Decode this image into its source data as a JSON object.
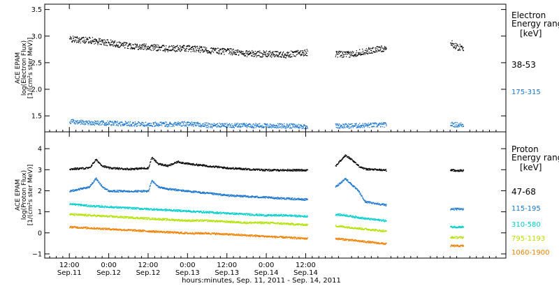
{
  "chart_data": [
    {
      "type": "scatter",
      "panel": "electron",
      "ylabel": [
        "ACE EPAM",
        "log(Electron Flux)",
        "[1/(cm²s ster MeV)]"
      ],
      "ylim": [
        1.2,
        3.6
      ],
      "yticks": [
        1.5,
        2.0,
        2.5,
        3.0,
        3.5
      ],
      "ytick_labels": [
        "1.5",
        "2.0",
        "2.5",
        "3.0",
        "3.5"
      ],
      "legend_title": [
        "Electron",
        "Energy ranges",
        "[keV]"
      ],
      "series": [
        {
          "name": "38-53",
          "color": "#000000",
          "points": [
            [
              0,
              2.95
            ],
            [
              6,
              2.93
            ],
            [
              12,
              2.88
            ],
            [
              18,
              2.83
            ],
            [
              24,
              2.8
            ],
            [
              30,
              2.77
            ],
            [
              36,
              2.78
            ],
            [
              42,
              2.74
            ],
            [
              48,
              2.72
            ],
            [
              54,
              2.68
            ],
            [
              60,
              2.67
            ],
            [
              66,
              2.66
            ],
            [
              72,
              2.7
            ],
            [
              81,
              2.67
            ],
            [
              85,
              2.66
            ],
            [
              90,
              2.72
            ],
            [
              96,
              2.78
            ],
            [
              102,
              2.86
            ],
            [
              108,
              2.9
            ],
            [
              116,
              2.88
            ],
            [
              118,
              2.8
            ],
            [
              120,
              2.79
            ]
          ]
        },
        {
          "name": "175-315",
          "color": "#1874cd",
          "points": [
            [
              0,
              1.4
            ],
            [
              6,
              1.38
            ],
            [
              12,
              1.37
            ],
            [
              18,
              1.36
            ],
            [
              24,
              1.35
            ],
            [
              30,
              1.35
            ],
            [
              36,
              1.36
            ],
            [
              42,
              1.33
            ],
            [
              48,
              1.33
            ],
            [
              54,
              1.33
            ],
            [
              60,
              1.32
            ],
            [
              66,
              1.32
            ],
            [
              72,
              1.31
            ],
            [
              81,
              1.32
            ],
            [
              85,
              1.32
            ],
            [
              90,
              1.33
            ],
            [
              96,
              1.34
            ],
            [
              102,
              1.36
            ],
            [
              108,
              1.37
            ],
            [
              116,
              1.35
            ],
            [
              118,
              1.34
            ],
            [
              120,
              1.34
            ]
          ]
        }
      ]
    },
    {
      "type": "scatter",
      "panel": "proton",
      "ylabel": [
        "ACE EPAM",
        "log(Proton Flux)",
        "[1/(cm²s ster MeV)]"
      ],
      "ylim": [
        -1.2,
        4.8
      ],
      "yticks": [
        -1,
        0,
        1,
        2,
        3,
        4
      ],
      "ytick_labels": [
        "−1",
        "0",
        "1",
        "2",
        "3",
        "4"
      ],
      "legend_title": [
        "Proton",
        "Energy ranges",
        "[keV]"
      ],
      "series": [
        {
          "name": "47-68",
          "color": "#000000",
          "points": [
            [
              0,
              3.05
            ],
            [
              6,
              3.1
            ],
            [
              8,
              3.5
            ],
            [
              10,
              3.2
            ],
            [
              12,
              3.1
            ],
            [
              18,
              3.05
            ],
            [
              24,
              3.1
            ],
            [
              25,
              3.6
            ],
            [
              27,
              3.3
            ],
            [
              30,
              3.2
            ],
            [
              33,
              3.4
            ],
            [
              36,
              3.3
            ],
            [
              42,
              3.2
            ],
            [
              48,
              3.1
            ],
            [
              54,
              3.05
            ],
            [
              60,
              3.0
            ],
            [
              66,
              3.0
            ],
            [
              72,
              3.0
            ],
            [
              81,
              3.2
            ],
            [
              84,
              3.7
            ],
            [
              86,
              3.5
            ],
            [
              88,
              3.2
            ],
            [
              90,
              3.05
            ],
            [
              96,
              3.0
            ],
            [
              102,
              3.0
            ],
            [
              106,
              3.0
            ],
            [
              107,
              4.2
            ],
            [
              108,
              3.2
            ],
            [
              110,
              3.0
            ],
            [
              116,
              3.0
            ],
            [
              118,
              2.98
            ],
            [
              120,
              2.98
            ]
          ]
        },
        {
          "name": "115-195",
          "color": "#1874cd",
          "points": [
            [
              0,
              2.0
            ],
            [
              6,
              2.2
            ],
            [
              8,
              2.6
            ],
            [
              10,
              2.2
            ],
            [
              12,
              2.0
            ],
            [
              18,
              2.0
            ],
            [
              24,
              2.0
            ],
            [
              25,
              2.5
            ],
            [
              27,
              2.2
            ],
            [
              30,
              2.1
            ],
            [
              36,
              2.0
            ],
            [
              42,
              1.9
            ],
            [
              48,
              1.8
            ],
            [
              54,
              1.75
            ],
            [
              60,
              1.7
            ],
            [
              66,
              1.65
            ],
            [
              72,
              1.6
            ],
            [
              81,
              2.2
            ],
            [
              84,
              2.6
            ],
            [
              86,
              2.3
            ],
            [
              88,
              2.0
            ],
            [
              90,
              1.5
            ],
            [
              96,
              1.35
            ],
            [
              102,
              1.3
            ],
            [
              106,
              1.25
            ],
            [
              107,
              2.4
            ],
            [
              108,
              1.4
            ],
            [
              110,
              1.2
            ],
            [
              116,
              1.15
            ],
            [
              118,
              1.15
            ],
            [
              120,
              1.15
            ]
          ]
        },
        {
          "name": "310-580",
          "color": "#00cdcd",
          "points": [
            [
              0,
              1.4
            ],
            [
              6,
              1.3
            ],
            [
              12,
              1.25
            ],
            [
              18,
              1.2
            ],
            [
              24,
              1.15
            ],
            [
              30,
              1.1
            ],
            [
              36,
              1.05
            ],
            [
              42,
              1.0
            ],
            [
              48,
              0.95
            ],
            [
              54,
              0.9
            ],
            [
              60,
              0.85
            ],
            [
              66,
              0.85
            ],
            [
              72,
              0.8
            ],
            [
              81,
              0.9
            ],
            [
              84,
              0.85
            ],
            [
              90,
              0.7
            ],
            [
              96,
              0.6
            ],
            [
              102,
              0.5
            ],
            [
              106,
              0.5
            ],
            [
              107,
              0.7
            ],
            [
              108,
              0.4
            ],
            [
              110,
              0.3
            ],
            [
              116,
              0.3
            ],
            [
              118,
              0.3
            ],
            [
              120,
              0.3
            ]
          ]
        },
        {
          "name": "795-1193",
          "color": "#b2e000",
          "points": [
            [
              0,
              0.9
            ],
            [
              6,
              0.85
            ],
            [
              12,
              0.8
            ],
            [
              18,
              0.75
            ],
            [
              24,
              0.7
            ],
            [
              30,
              0.65
            ],
            [
              36,
              0.6
            ],
            [
              42,
              0.6
            ],
            [
              48,
              0.55
            ],
            [
              54,
              0.5
            ],
            [
              60,
              0.5
            ],
            [
              66,
              0.45
            ],
            [
              72,
              0.4
            ],
            [
              81,
              0.35
            ],
            [
              84,
              0.3
            ],
            [
              90,
              0.2
            ],
            [
              96,
              0.1
            ],
            [
              102,
              0.0
            ],
            [
              106,
              -0.05
            ],
            [
              110,
              -0.15
            ],
            [
              116,
              -0.2
            ],
            [
              118,
              -0.2
            ],
            [
              120,
              -0.2
            ]
          ]
        },
        {
          "name": "1060-1900",
          "color": "#f08000",
          "points": [
            [
              0,
              0.3
            ],
            [
              6,
              0.25
            ],
            [
              12,
              0.2
            ],
            [
              18,
              0.15
            ],
            [
              24,
              0.1
            ],
            [
              30,
              0.05
            ],
            [
              36,
              0.0
            ],
            [
              42,
              0.0
            ],
            [
              48,
              -0.05
            ],
            [
              54,
              -0.1
            ],
            [
              60,
              -0.15
            ],
            [
              66,
              -0.2
            ],
            [
              72,
              -0.25
            ],
            [
              81,
              -0.25
            ],
            [
              84,
              -0.3
            ],
            [
              90,
              -0.4
            ],
            [
              96,
              -0.5
            ],
            [
              102,
              -0.55
            ],
            [
              106,
              -0.6
            ],
            [
              110,
              -0.7
            ],
            [
              116,
              -0.6
            ],
            [
              118,
              -0.6
            ],
            [
              120,
              -0.6
            ]
          ]
        }
      ]
    }
  ],
  "xaxis": {
    "xlim": [
      -7.5,
      133
    ],
    "gaps": [
      [
        72.5,
        81
      ],
      [
        96.5,
        116
      ]
    ],
    "ticks": [
      {
        "x": 0,
        "time": "12:00",
        "day": "Sep.11"
      },
      {
        "x": 12,
        "time": "0:00",
        "day": "Sep.12"
      },
      {
        "x": 24,
        "time": "12:00",
        "day": "Sep.12"
      },
      {
        "x": 36,
        "time": "0:00",
        "day": "Sep.13"
      },
      {
        "x": 48,
        "time": "12:00",
        "day": "Sep.13"
      },
      {
        "x": 60,
        "time": "0:00",
        "day": "Sep.14"
      },
      {
        "x": 72,
        "time": "12:00",
        "day": "Sep.14"
      }
    ],
    "xlabel": "hours:minutes, Sep. 11, 2011 - Sep. 14, 2011"
  }
}
